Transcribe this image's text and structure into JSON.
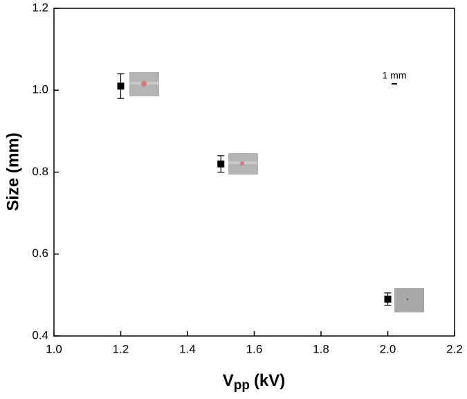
{
  "chart_data": {
    "type": "scatter",
    "xlabel": [
      "V",
      "pp",
      "(kV)"
    ],
    "ylabel": "Size (mm)",
    "annotation": "1 mm",
    "x": [
      1.2,
      1.5,
      2.0
    ],
    "series": [
      {
        "color": "#000000",
        "values": [
          1.01,
          0.82,
          0.49
        ],
        "errors": [
          0.03,
          0.02,
          0.015
        ]
      }
    ],
    "xlim": [
      1.0,
      2.2
    ],
    "ylim": [
      0.4,
      1.2
    ],
    "xticks": [
      {
        "value": 1.0,
        "label": "1.0"
      },
      1.2,
      1.4,
      1.6,
      1.8,
      {
        "value": 2.0,
        "label": "2.0"
      },
      2.2
    ],
    "yticks": [
      0.4,
      0.6,
      0.8,
      {
        "value": 1.0,
        "label": "1.0"
      },
      1.2
    ],
    "grid": false
  }
}
